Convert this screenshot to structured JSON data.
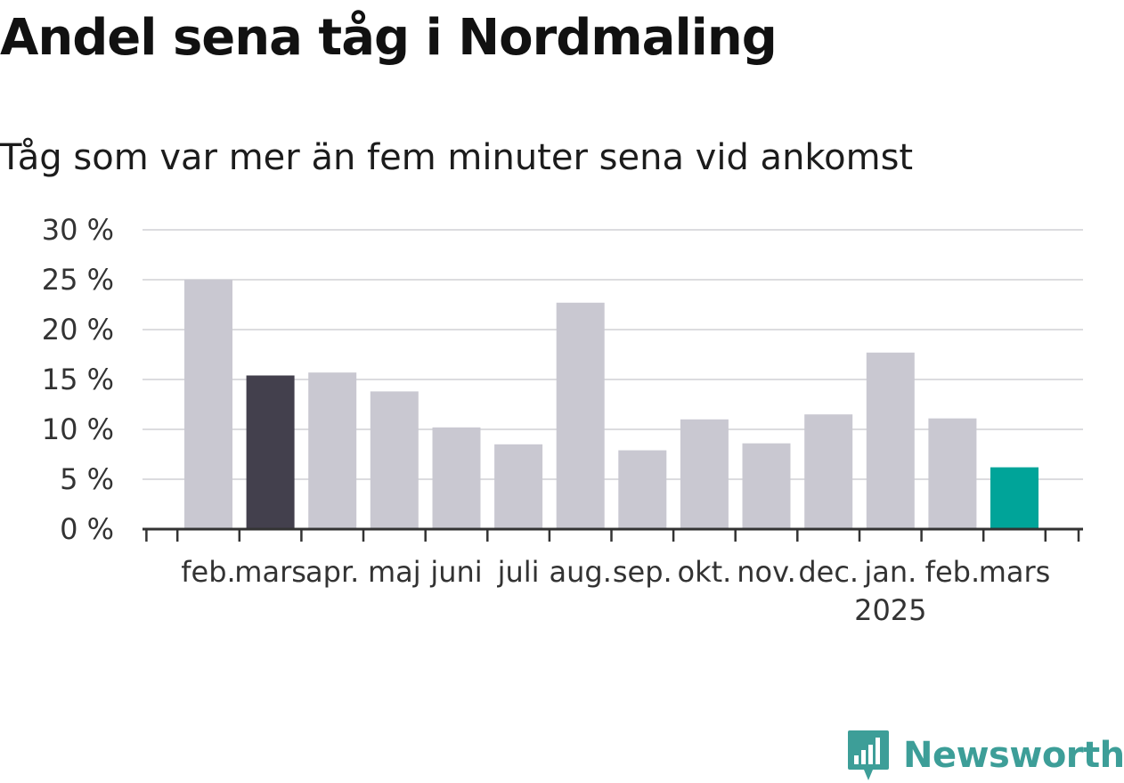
{
  "chart_data": {
    "type": "bar",
    "title": "Andel sena tåg i Nordmaling",
    "subtitle": "Tåg som var mer än fem minuter sena vid ankomst",
    "categories": [
      "feb.",
      "mars",
      "apr.",
      "maj",
      "juni",
      "juli",
      "aug.",
      "sep.",
      "okt.",
      "nov.",
      "dec.",
      "jan.",
      "feb.",
      "mars"
    ],
    "year_label": "2025",
    "values": [
      25.0,
      15.4,
      15.7,
      13.8,
      10.2,
      8.5,
      22.7,
      7.9,
      11.0,
      8.6,
      11.5,
      17.7,
      11.1,
      6.2
    ],
    "bar_colors": [
      "#c9c8d1",
      "#43404d",
      "#c9c8d1",
      "#c9c8d1",
      "#c9c8d1",
      "#c9c8d1",
      "#c9c8d1",
      "#c9c8d1",
      "#c9c8d1",
      "#c9c8d1",
      "#c9c8d1",
      "#c9c8d1",
      "#c9c8d1",
      "#00a499"
    ],
    "y_ticks": [
      "0 %",
      "5 %",
      "10 %",
      "15 %",
      "20 %",
      "25 %",
      "30 %"
    ],
    "ylim": [
      0,
      30
    ],
    "grid": true,
    "xlabel": "",
    "ylabel": ""
  },
  "colors": {
    "default_bar": "#c9c8d1",
    "highlight_dark": "#43404d",
    "highlight_accent": "#00a499",
    "brand": "#3d9e98"
  },
  "brand": {
    "name": "Newsworthy",
    "icon": "newsworthy-logo-icon"
  }
}
